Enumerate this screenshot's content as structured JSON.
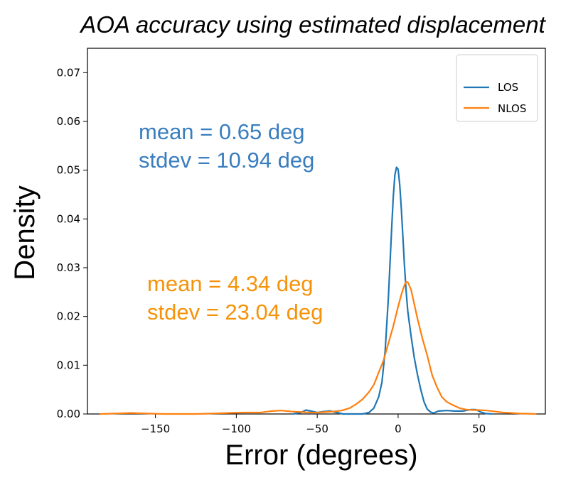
{
  "chart_data": {
    "type": "line",
    "title": "AOA accuracy using estimated displacement",
    "xlabel": "Error (degrees)",
    "ylabel": "Density",
    "xlim": [
      -192,
      91
    ],
    "ylim": [
      0,
      0.075
    ],
    "xticks": [
      -150,
      -100,
      -50,
      0,
      50
    ],
    "xtick_labels": [
      "−150",
      "−100",
      "−50",
      "0",
      "50"
    ],
    "yticks": [
      0.0,
      0.01,
      0.02,
      0.03,
      0.04,
      0.05,
      0.06,
      0.07
    ],
    "ytick_labels": [
      "0.00",
      "0.01",
      "0.02",
      "0.03",
      "0.04",
      "0.05",
      "0.06",
      "0.07"
    ],
    "grid": false,
    "legend": {
      "placement": "top-right"
    },
    "series": [
      {
        "name": "LOS",
        "color": "#1f77b4",
        "x": [
          -65,
          -60,
          -57,
          -54,
          -50,
          -46,
          -42,
          -38,
          -34,
          -30,
          -26,
          -22,
          -18,
          -15,
          -12,
          -10,
          -8,
          -6,
          -4,
          -3,
          -2,
          -1,
          0,
          1,
          2,
          3,
          4,
          5,
          6,
          8,
          10,
          12,
          14,
          16,
          18,
          20,
          22,
          25,
          30,
          35,
          40,
          45,
          48,
          51,
          54,
          58
        ],
        "y": [
          0.0,
          0.0003,
          0.0008,
          0.0006,
          0.0003,
          0.0005,
          0.0006,
          0.0003,
          0.0,
          0.0,
          0.0,
          0.0,
          0.0003,
          0.0012,
          0.0035,
          0.0065,
          0.013,
          0.024,
          0.038,
          0.0445,
          0.049,
          0.0506,
          0.0502,
          0.047,
          0.042,
          0.036,
          0.03,
          0.025,
          0.021,
          0.016,
          0.0115,
          0.008,
          0.005,
          0.0025,
          0.001,
          0.0004,
          0.0002,
          0.0006,
          0.0007,
          0.0006,
          0.0006,
          0.0009,
          0.0009,
          0.0004,
          0.0001,
          0.0
        ]
      },
      {
        "name": "NLOS",
        "color": "#ff7f0e",
        "x": [
          -184,
          -175,
          -165,
          -155,
          -145,
          -135,
          -125,
          -115,
          -105,
          -95,
          -85,
          -78,
          -72,
          -66,
          -60,
          -55,
          -50,
          -45,
          -40,
          -35,
          -30,
          -26,
          -22,
          -18,
          -15,
          -12,
          -9,
          -6,
          -3,
          0,
          2,
          4,
          5,
          6,
          8,
          10,
          12,
          15,
          18,
          21,
          24,
          27,
          30,
          34,
          38,
          42,
          46,
          50,
          55,
          60,
          65,
          70,
          75,
          80,
          85
        ],
        "y": [
          0.0,
          0.0001,
          0.0002,
          0.0001,
          0.0,
          0.0,
          0.0,
          0.0001,
          0.0002,
          0.0003,
          0.0003,
          0.0006,
          0.0007,
          0.0005,
          0.0004,
          0.0003,
          0.0003,
          0.0004,
          0.0005,
          0.0007,
          0.0012,
          0.002,
          0.003,
          0.0045,
          0.006,
          0.0085,
          0.011,
          0.0145,
          0.018,
          0.022,
          0.0245,
          0.0265,
          0.0271,
          0.027,
          0.0255,
          0.0225,
          0.0195,
          0.0155,
          0.012,
          0.008,
          0.0055,
          0.0035,
          0.0025,
          0.0018,
          0.0012,
          0.0009,
          0.0008,
          0.0008,
          0.0007,
          0.0005,
          0.0003,
          0.0002,
          0.0001,
          5e-05,
          0.0
        ]
      }
    ],
    "annotations": [
      {
        "key": "los",
        "lines": [
          "mean = 0.65 deg",
          "stdev = 10.94 deg"
        ],
        "color": "#3a7ebf"
      },
      {
        "key": "nlos",
        "lines": [
          "mean = 4.34 deg",
          "stdev = 23.04 deg"
        ],
        "color": "#f5930a"
      }
    ]
  }
}
